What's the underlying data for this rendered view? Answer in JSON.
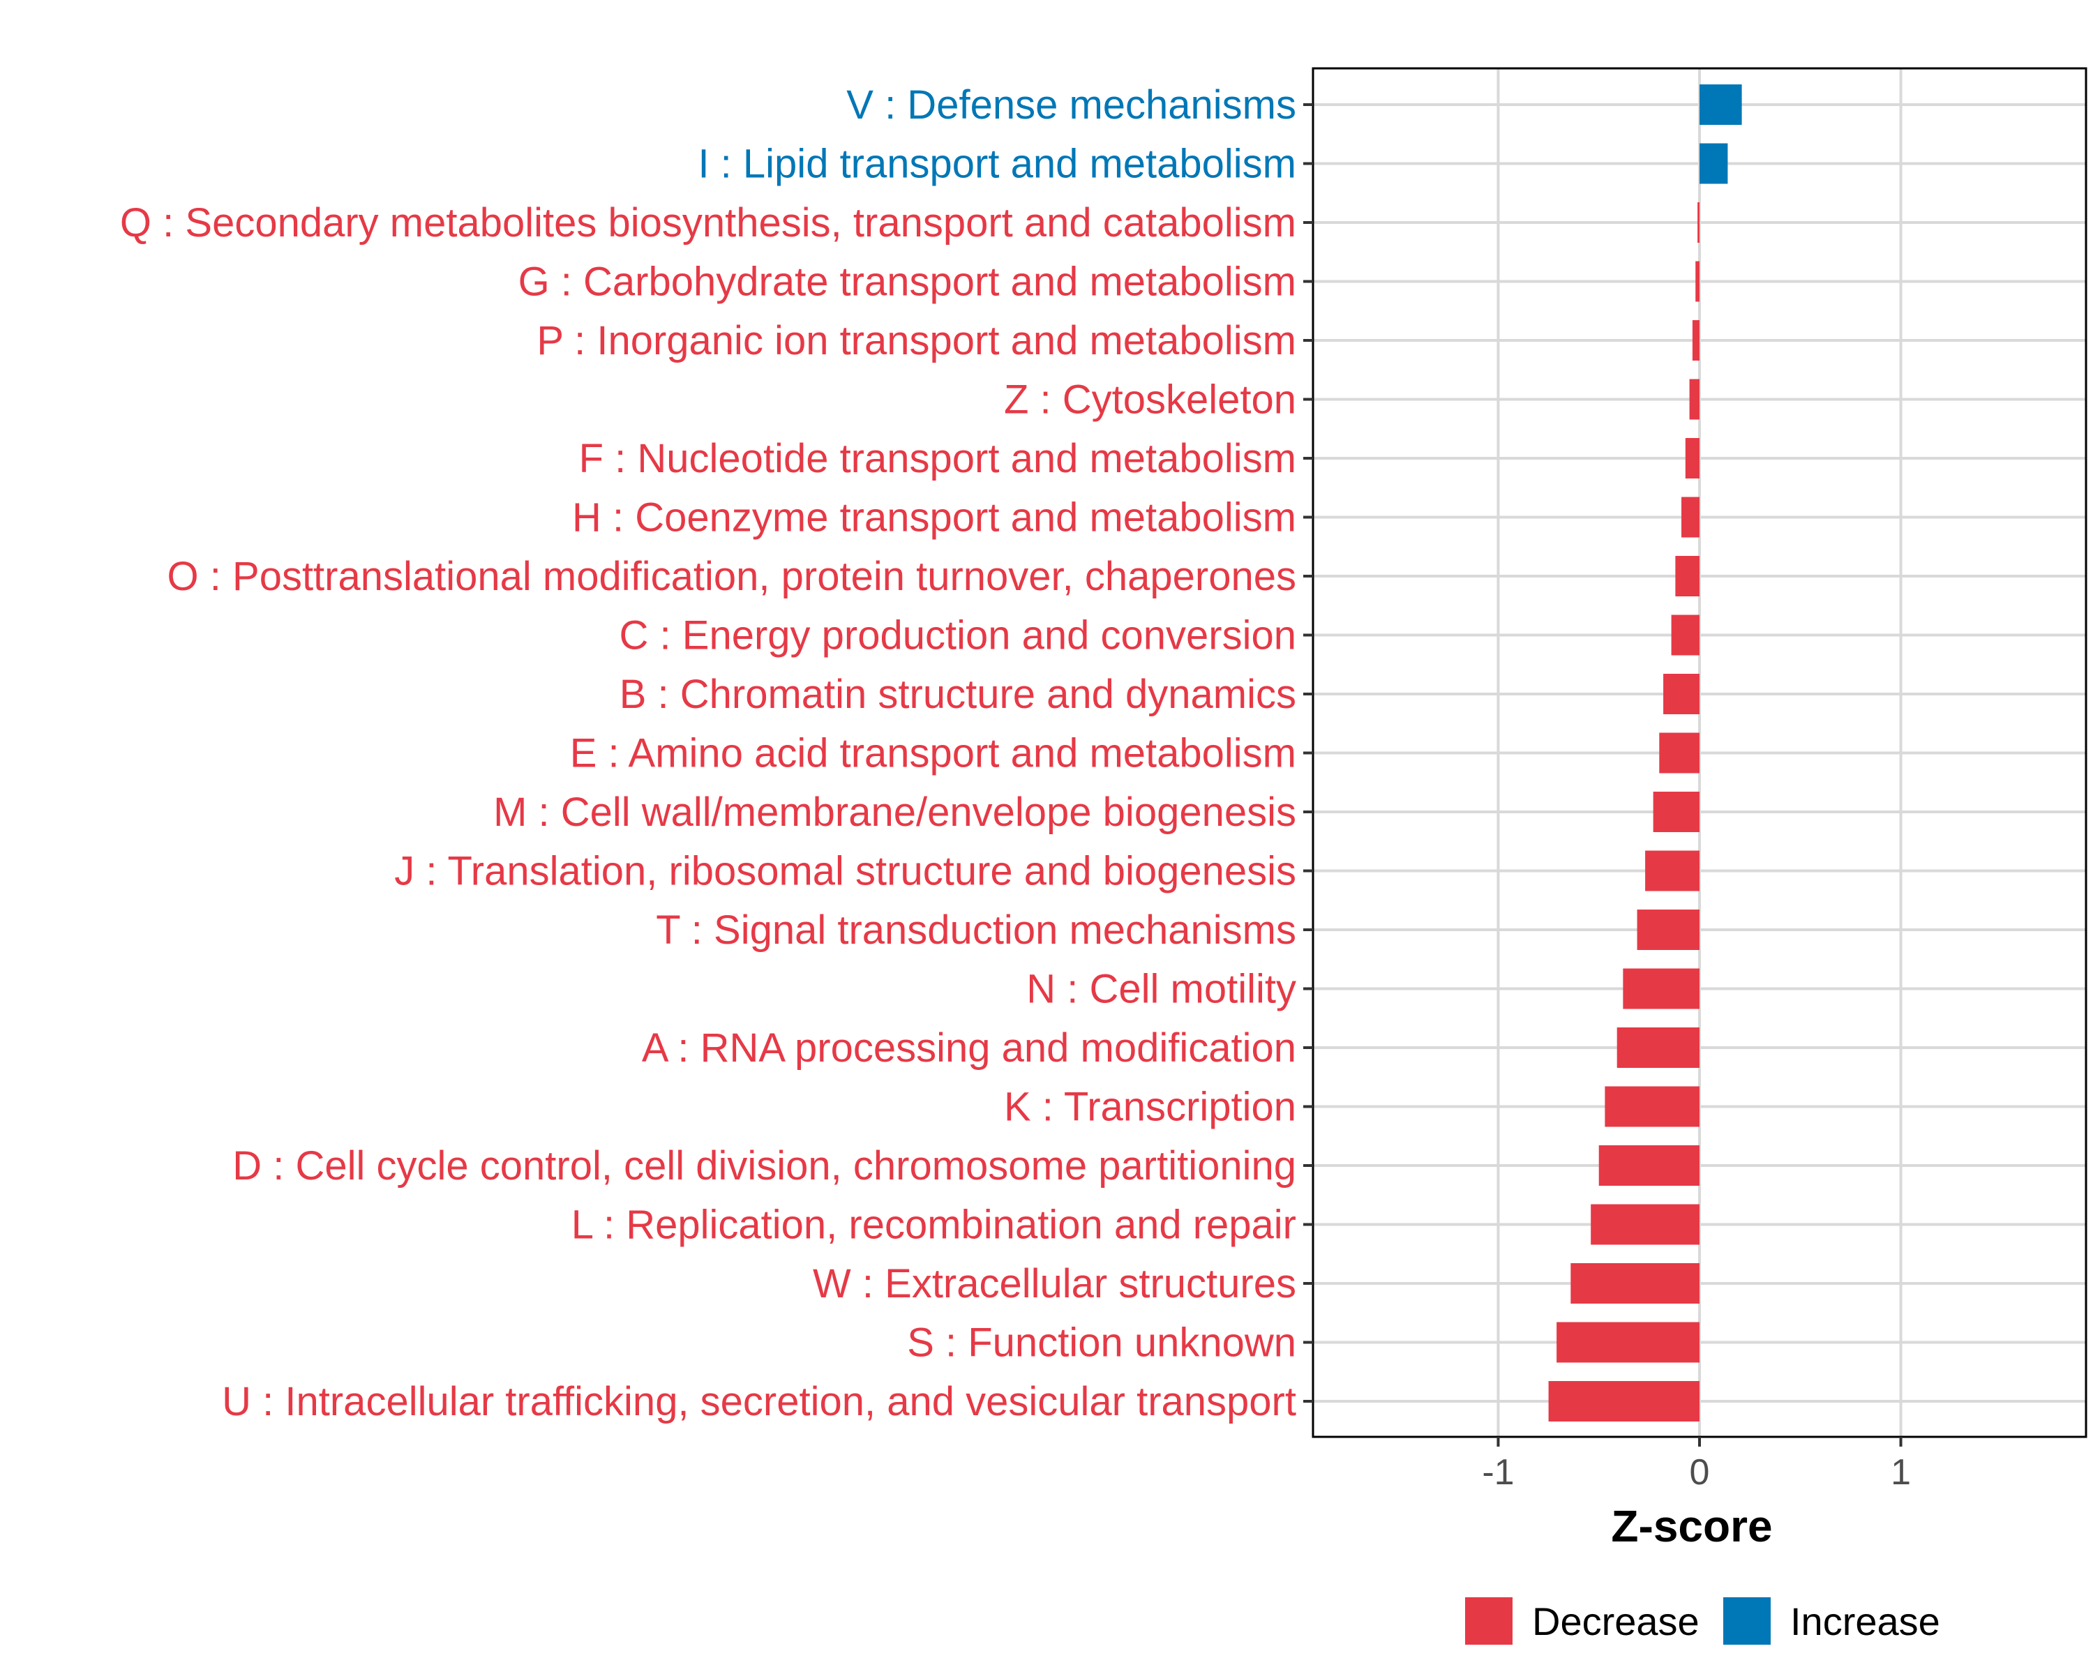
{
  "chart_data": {
    "type": "bar",
    "orientation": "horizontal",
    "xlabel": "Z-score",
    "ylabel": "",
    "xlim": [
      -1.92,
      1.92
    ],
    "xticks": [
      -1,
      0,
      1
    ],
    "xtick_labels": [
      "-1",
      "0",
      "1"
    ],
    "grid": true,
    "legend_position": "bottom",
    "categories": [
      "V : Defense mechanisms",
      "I : Lipid transport and metabolism",
      "Q : Secondary metabolites biosynthesis, transport and catabolism",
      "G : Carbohydrate transport and metabolism",
      "P : Inorganic ion transport and metabolism",
      "Z : Cytoskeleton",
      "F : Nucleotide transport and metabolism",
      "H : Coenzyme transport and metabolism",
      "O : Posttranslational modification, protein turnover, chaperones",
      "C : Energy production and conversion",
      "B : Chromatin structure and dynamics",
      "E : Amino acid transport and metabolism",
      "M : Cell wall/membrane/envelope biogenesis",
      "J : Translation, ribosomal structure and biogenesis",
      "T : Signal transduction mechanisms",
      "N : Cell motility",
      "A : RNA processing and modification",
      "K : Transcription",
      "D : Cell cycle control, cell division, chromosome partitioning",
      "L : Replication, recombination and repair",
      "W : Extracellular structures",
      "S : Function unknown",
      "U : Intracellular trafficking, secretion, and vesicular transport"
    ],
    "values": [
      0.21,
      0.14,
      -0.01,
      -0.02,
      -0.035,
      -0.05,
      -0.07,
      -0.09,
      -0.12,
      -0.14,
      -0.18,
      -0.2,
      -0.23,
      -0.27,
      -0.31,
      -0.38,
      -0.41,
      -0.47,
      -0.5,
      -0.54,
      -0.64,
      -0.71,
      -0.75
    ],
    "groups": [
      "Increase",
      "Increase",
      "Decrease",
      "Decrease",
      "Decrease",
      "Decrease",
      "Decrease",
      "Decrease",
      "Decrease",
      "Decrease",
      "Decrease",
      "Decrease",
      "Decrease",
      "Decrease",
      "Decrease",
      "Decrease",
      "Decrease",
      "Decrease",
      "Decrease",
      "Decrease",
      "Decrease",
      "Decrease",
      "Decrease"
    ],
    "legend": [
      {
        "name": "Decrease",
        "color": "#E63946"
      },
      {
        "name": "Increase",
        "color": "#0077B6"
      }
    ]
  },
  "colors": {
    "decrease": "#E63946",
    "increase": "#0077B6",
    "grid": "#d9d9d9",
    "panel_border": "#000000"
  }
}
